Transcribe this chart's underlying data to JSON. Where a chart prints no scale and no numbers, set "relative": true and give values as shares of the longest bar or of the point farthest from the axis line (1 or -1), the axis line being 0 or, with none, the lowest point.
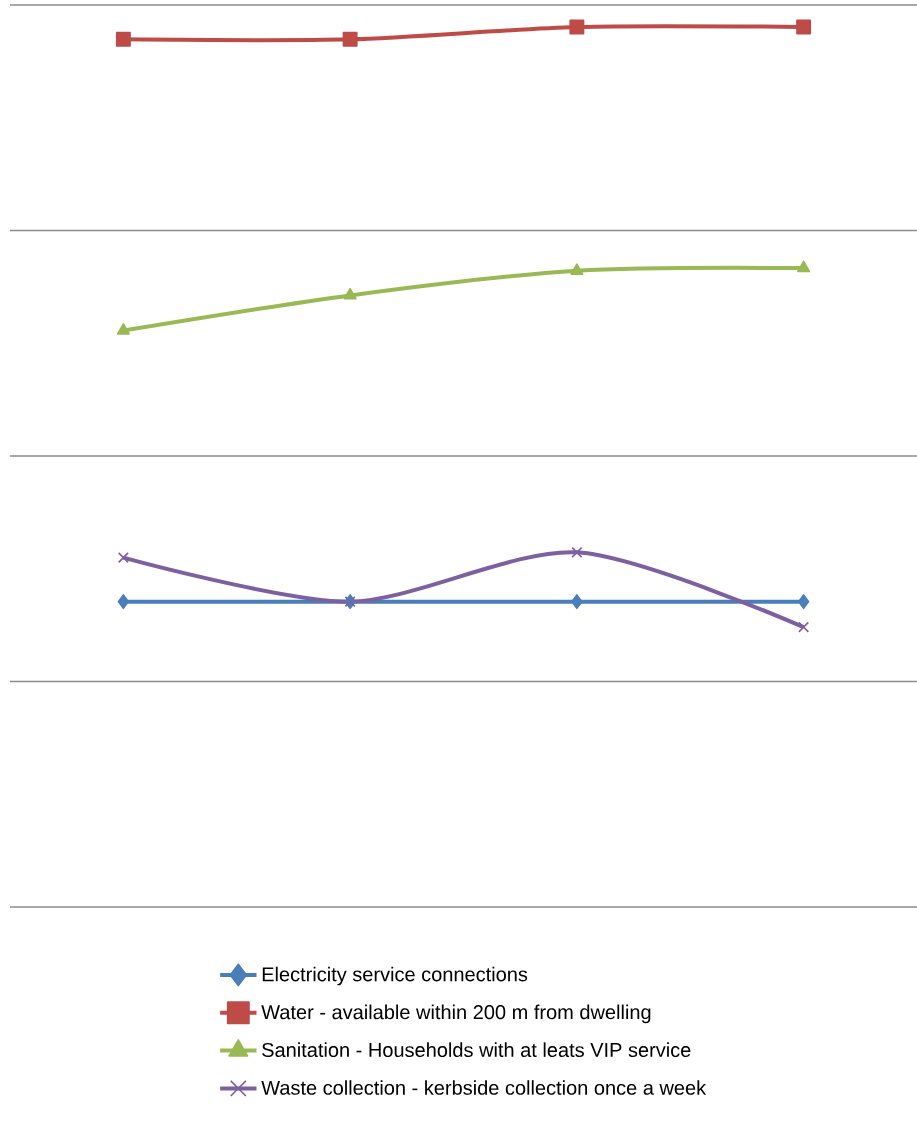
{
  "chart_data": {
    "type": "line",
    "relative": true,
    "categories": [
      null,
      null,
      null,
      null
    ],
    "grid": "y",
    "legend": "bottom",
    "series": [
      {
        "name": "Electricity  service connections",
        "color": "#4a7ebb",
        "marker": "diamond",
        "values": [
          0.347,
          0.347,
          0.347,
          0.347
        ]
      },
      {
        "name": "Water - available within 200 m from dwelling",
        "color": "#be4b48",
        "marker": "square",
        "values": [
          0.986,
          0.986,
          1,
          1
        ]
      },
      {
        "name": "Sanitation - Households with at leats VIP service",
        "color": "#98b954",
        "marker": "triangle",
        "values": [
          0.655,
          0.695,
          0.723,
          0.726
        ]
      },
      {
        "name": "Waste collection - kerbside collection once a week",
        "color": "#7d60a0",
        "marker": "cross",
        "values": [
          0.397,
          0.347,
          0.403,
          0.318
        ]
      }
    ]
  }
}
